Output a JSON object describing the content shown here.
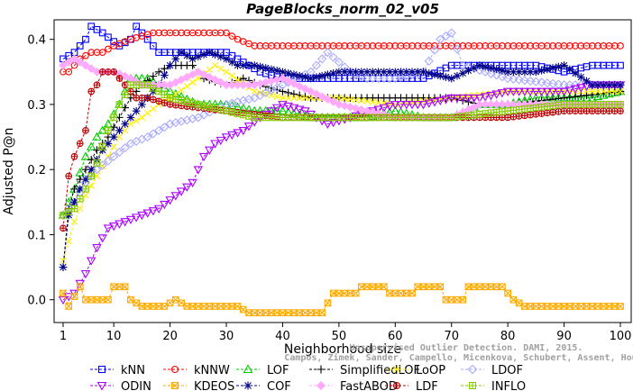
{
  "chart_data": {
    "type": "line",
    "title": "PageBlocks_norm_02_v05",
    "xlabel": "Neighborhood size",
    "ylabel": "Adjusted P@n",
    "xlim": [
      1,
      100
    ],
    "ylim": [
      -0.035,
      0.43
    ],
    "xticks": [
      1,
      10,
      20,
      30,
      40,
      50,
      60,
      70,
      80,
      90,
      100
    ],
    "yticks": [
      0.0,
      0.1,
      0.2,
      0.3,
      0.4
    ],
    "ytick_labels": [
      "0.0",
      "0.1",
      "0.2",
      "0.3",
      "0.4"
    ],
    "grid": false,
    "legend_placement": "bottom",
    "watermark": [
      "Campos, Zimek, Sander, Campello, Micenkova, Schubert, Assent, Houle",
      "Unsupervised Outlier Detection. DAMI, 2015."
    ],
    "series": [
      {
        "name": "kNN",
        "color": "#0000ff",
        "marker": "square",
        "points": [
          [
            1,
            0.37
          ],
          [
            3,
            0.38
          ],
          [
            5,
            0.4
          ],
          [
            6,
            0.42
          ],
          [
            8,
            0.41
          ],
          [
            11,
            0.39
          ],
          [
            13,
            0.4
          ],
          [
            14,
            0.42
          ],
          [
            16,
            0.4
          ],
          [
            18,
            0.38
          ],
          [
            25,
            0.38
          ],
          [
            30,
            0.38
          ],
          [
            32,
            0.37
          ],
          [
            34,
            0.36
          ],
          [
            36,
            0.35
          ],
          [
            40,
            0.34
          ],
          [
            50,
            0.34
          ],
          [
            55,
            0.34
          ],
          [
            60,
            0.34
          ],
          [
            65,
            0.34
          ],
          [
            70,
            0.36
          ],
          [
            80,
            0.36
          ],
          [
            85,
            0.36
          ],
          [
            90,
            0.35
          ],
          [
            95,
            0.36
          ],
          [
            100,
            0.36
          ]
        ]
      },
      {
        "name": "kNNW",
        "color": "#ff0000",
        "marker": "circle",
        "points": [
          [
            1,
            0.35
          ],
          [
            2,
            0.35
          ],
          [
            4,
            0.37
          ],
          [
            6,
            0.38
          ],
          [
            8,
            0.38
          ],
          [
            10,
            0.39
          ],
          [
            13,
            0.4
          ],
          [
            17,
            0.41
          ],
          [
            20,
            0.41
          ],
          [
            30,
            0.41
          ],
          [
            32,
            0.4
          ],
          [
            35,
            0.39
          ],
          [
            40,
            0.39
          ],
          [
            50,
            0.39
          ],
          [
            60,
            0.39
          ],
          [
            70,
            0.39
          ],
          [
            80,
            0.39
          ],
          [
            90,
            0.39
          ],
          [
            100,
            0.39
          ]
        ]
      },
      {
        "name": "LOF",
        "color": "#00cc00",
        "marker": "triangle-up",
        "points": [
          [
            1,
            0.13
          ],
          [
            3,
            0.17
          ],
          [
            5,
            0.22
          ],
          [
            7,
            0.25
          ],
          [
            9,
            0.27
          ],
          [
            11,
            0.3
          ],
          [
            13,
            0.34
          ],
          [
            16,
            0.34
          ],
          [
            20,
            0.32
          ],
          [
            25,
            0.3
          ],
          [
            30,
            0.3
          ],
          [
            35,
            0.29
          ],
          [
            40,
            0.29
          ],
          [
            45,
            0.28
          ],
          [
            50,
            0.28
          ],
          [
            55,
            0.28
          ],
          [
            60,
            0.29
          ],
          [
            65,
            0.28
          ],
          [
            70,
            0.28
          ],
          [
            75,
            0.3
          ],
          [
            80,
            0.3
          ],
          [
            85,
            0.31
          ],
          [
            90,
            0.31
          ],
          [
            95,
            0.31
          ],
          [
            100,
            0.32
          ]
        ]
      },
      {
        "name": "SimplifiedLOF",
        "color": "#000000",
        "marker": "plus",
        "points": [
          [
            1,
            0.05
          ],
          [
            2,
            0.14
          ],
          [
            3,
            0.17
          ],
          [
            5,
            0.2
          ],
          [
            7,
            0.23
          ],
          [
            9,
            0.25
          ],
          [
            11,
            0.28
          ],
          [
            13,
            0.31
          ],
          [
            15,
            0.33
          ],
          [
            18,
            0.35
          ],
          [
            20,
            0.36
          ],
          [
            24,
            0.36
          ],
          [
            26,
            0.34
          ],
          [
            30,
            0.33
          ],
          [
            33,
            0.34
          ],
          [
            36,
            0.33
          ],
          [
            40,
            0.32
          ],
          [
            45,
            0.31
          ],
          [
            50,
            0.31
          ],
          [
            60,
            0.31
          ],
          [
            70,
            0.31
          ],
          [
            75,
            0.3
          ],
          [
            80,
            0.3
          ],
          [
            90,
            0.31
          ],
          [
            100,
            0.32
          ]
        ]
      },
      {
        "name": "LoOP",
        "color": "#ffee00",
        "marker": "x",
        "points": [
          [
            1,
            0.06
          ],
          [
            3,
            0.12
          ],
          [
            5,
            0.16
          ],
          [
            7,
            0.19
          ],
          [
            9,
            0.22
          ],
          [
            11,
            0.25
          ],
          [
            13,
            0.27
          ],
          [
            15,
            0.28
          ],
          [
            18,
            0.3
          ],
          [
            20,
            0.31
          ],
          [
            25,
            0.34
          ],
          [
            28,
            0.36
          ],
          [
            30,
            0.35
          ],
          [
            35,
            0.32
          ],
          [
            40,
            0.31
          ],
          [
            50,
            0.31
          ],
          [
            60,
            0.3
          ],
          [
            70,
            0.31
          ],
          [
            80,
            0.32
          ],
          [
            90,
            0.32
          ],
          [
            100,
            0.32
          ]
        ]
      },
      {
        "name": "LDOF",
        "color": "#aaaaff",
        "marker": "diamond",
        "points": [
          [
            1,
            0.13
          ],
          [
            3,
            0.15
          ],
          [
            5,
            0.18
          ],
          [
            7,
            0.2
          ],
          [
            10,
            0.22
          ],
          [
            13,
            0.24
          ],
          [
            16,
            0.25
          ],
          [
            20,
            0.27
          ],
          [
            25,
            0.28
          ],
          [
            30,
            0.3
          ],
          [
            35,
            0.31
          ],
          [
            40,
            0.33
          ],
          [
            45,
            0.35
          ],
          [
            48,
            0.38
          ],
          [
            52,
            0.35
          ],
          [
            55,
            0.34
          ],
          [
            60,
            0.34
          ],
          [
            65,
            0.35
          ],
          [
            68,
            0.4
          ],
          [
            70,
            0.41
          ],
          [
            72,
            0.36
          ],
          [
            80,
            0.34
          ],
          [
            90,
            0.33
          ],
          [
            100,
            0.33
          ]
        ]
      },
      {
        "name": "ODIN",
        "color": "#aa00ff",
        "marker": "triangle-down",
        "points": [
          [
            1,
            0.0
          ],
          [
            3,
            0.01
          ],
          [
            5,
            0.04
          ],
          [
            7,
            0.08
          ],
          [
            9,
            0.11
          ],
          [
            12,
            0.12
          ],
          [
            15,
            0.13
          ],
          [
            18,
            0.14
          ],
          [
            21,
            0.16
          ],
          [
            24,
            0.18
          ],
          [
            26,
            0.22
          ],
          [
            28,
            0.24
          ],
          [
            30,
            0.25
          ],
          [
            33,
            0.26
          ],
          [
            36,
            0.28
          ],
          [
            40,
            0.3
          ],
          [
            44,
            0.29
          ],
          [
            48,
            0.27
          ],
          [
            52,
            0.28
          ],
          [
            56,
            0.29
          ],
          [
            60,
            0.3
          ],
          [
            65,
            0.3
          ],
          [
            70,
            0.31
          ],
          [
            75,
            0.31
          ],
          [
            80,
            0.32
          ],
          [
            85,
            0.32
          ],
          [
            90,
            0.32
          ],
          [
            95,
            0.33
          ],
          [
            100,
            0.33
          ]
        ]
      },
      {
        "name": "KDEOS",
        "color": "#ffaa00",
        "marker": "square-x",
        "points": [
          [
            1,
            0.01
          ],
          [
            2,
            -0.01
          ],
          [
            4,
            0.02
          ],
          [
            5,
            0.0
          ],
          [
            9,
            0.0
          ],
          [
            10,
            0.02
          ],
          [
            12,
            0.02
          ],
          [
            13,
            0.0
          ],
          [
            15,
            -0.01
          ],
          [
            19,
            -0.01
          ],
          [
            21,
            0.0
          ],
          [
            23,
            -0.01
          ],
          [
            32,
            -0.01
          ],
          [
            34,
            -0.02
          ],
          [
            47,
            -0.02
          ],
          [
            49,
            0.01
          ],
          [
            53,
            0.01
          ],
          [
            54,
            0.02
          ],
          [
            58,
            0.02
          ],
          [
            59,
            0.01
          ],
          [
            63,
            0.01
          ],
          [
            64,
            0.02
          ],
          [
            68,
            0.02
          ],
          [
            69,
            0.0
          ],
          [
            72,
            0.0
          ],
          [
            73,
            0.02
          ],
          [
            79,
            0.02
          ],
          [
            81,
            0.0
          ],
          [
            83,
            -0.01
          ],
          [
            100,
            -0.01
          ]
        ]
      },
      {
        "name": "COF",
        "color": "#000088",
        "marker": "asterisk",
        "points": [
          [
            1,
            0.05
          ],
          [
            2,
            0.13
          ],
          [
            4,
            0.17
          ],
          [
            6,
            0.2
          ],
          [
            8,
            0.23
          ],
          [
            10,
            0.25
          ],
          [
            12,
            0.27
          ],
          [
            14,
            0.29
          ],
          [
            16,
            0.31
          ],
          [
            18,
            0.33
          ],
          [
            20,
            0.36
          ],
          [
            22,
            0.38
          ],
          [
            24,
            0.37
          ],
          [
            27,
            0.38
          ],
          [
            30,
            0.37
          ],
          [
            32,
            0.36
          ],
          [
            35,
            0.36
          ],
          [
            40,
            0.35
          ],
          [
            45,
            0.34
          ],
          [
            50,
            0.35
          ],
          [
            55,
            0.35
          ],
          [
            60,
            0.35
          ],
          [
            65,
            0.35
          ],
          [
            70,
            0.34
          ],
          [
            75,
            0.36
          ],
          [
            80,
            0.35
          ],
          [
            85,
            0.35
          ],
          [
            90,
            0.36
          ],
          [
            95,
            0.33
          ],
          [
            100,
            0.33
          ]
        ]
      },
      {
        "name": "FastABOD",
        "color": "#ffaaff",
        "marker": "diamond-filled",
        "points": [
          [
            1,
            0.36
          ],
          [
            3,
            0.37
          ],
          [
            5,
            0.36
          ],
          [
            7,
            0.35
          ],
          [
            10,
            0.35
          ],
          [
            13,
            0.34
          ],
          [
            15,
            0.33
          ],
          [
            20,
            0.33
          ],
          [
            25,
            0.35
          ],
          [
            30,
            0.33
          ],
          [
            35,
            0.33
          ],
          [
            40,
            0.34
          ],
          [
            45,
            0.32
          ],
          [
            50,
            0.3
          ],
          [
            55,
            0.29
          ],
          [
            60,
            0.28
          ],
          [
            70,
            0.28
          ],
          [
            75,
            0.3
          ],
          [
            80,
            0.3
          ],
          [
            90,
            0.3
          ],
          [
            100,
            0.3
          ]
        ]
      },
      {
        "name": "LDF",
        "color": "#bb0000",
        "marker": "circle-plus",
        "points": [
          [
            1,
            0.11
          ],
          [
            2,
            0.19
          ],
          [
            3,
            0.22
          ],
          [
            5,
            0.26
          ],
          [
            6,
            0.32
          ],
          [
            7,
            0.33
          ],
          [
            8,
            0.35
          ],
          [
            10,
            0.35
          ],
          [
            12,
            0.33
          ],
          [
            14,
            0.31
          ],
          [
            16,
            0.31
          ],
          [
            20,
            0.3
          ],
          [
            30,
            0.29
          ],
          [
            40,
            0.28
          ],
          [
            50,
            0.28
          ],
          [
            60,
            0.28
          ],
          [
            70,
            0.28
          ],
          [
            80,
            0.28
          ],
          [
            90,
            0.29
          ],
          [
            100,
            0.29
          ]
        ]
      },
      {
        "name": "INFLO",
        "color": "#88cc00",
        "marker": "square-cross",
        "points": [
          [
            1,
            0.13
          ],
          [
            3,
            0.14
          ],
          [
            5,
            0.17
          ],
          [
            7,
            0.21
          ],
          [
            9,
            0.26
          ],
          [
            11,
            0.3
          ],
          [
            13,
            0.33
          ],
          [
            16,
            0.33
          ],
          [
            20,
            0.31
          ],
          [
            25,
            0.3
          ],
          [
            30,
            0.29
          ],
          [
            35,
            0.28
          ],
          [
            40,
            0.28
          ],
          [
            45,
            0.28
          ],
          [
            50,
            0.28
          ],
          [
            60,
            0.28
          ],
          [
            70,
            0.28
          ],
          [
            80,
            0.29
          ],
          [
            90,
            0.3
          ],
          [
            100,
            0.3
          ]
        ]
      }
    ]
  }
}
